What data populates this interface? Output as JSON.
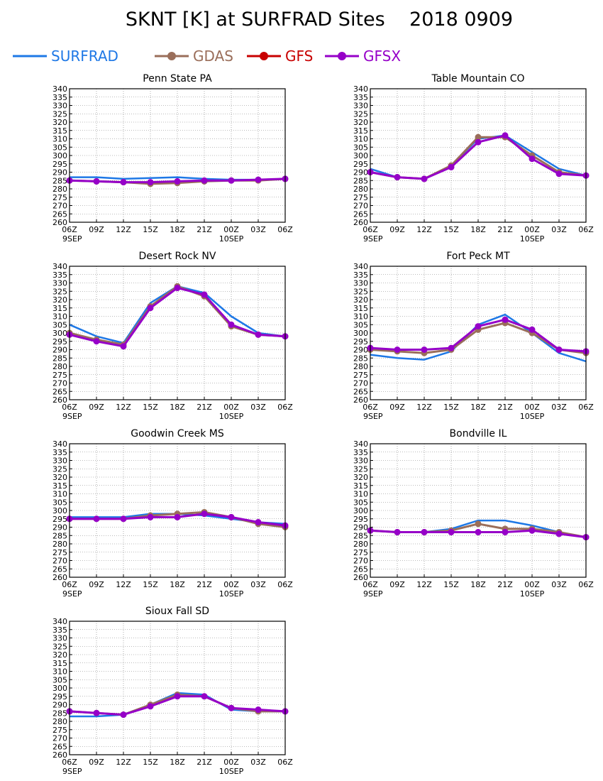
{
  "title": "SKNT [K] at SURFRAD Sites    2018 0909",
  "legend": [
    {
      "name": "SURFRAD",
      "color": "#1e78e6",
      "marker": "none"
    },
    {
      "name": "GDAS",
      "color": "#9a6e5a",
      "marker": "circle"
    },
    {
      "name": "GFS",
      "color": "#c80000",
      "marker": "circle"
    },
    {
      "name": "GFSX",
      "color": "#9600c8",
      "marker": "circle"
    }
  ],
  "x_ticks": [
    "06Z",
    "09Z",
    "12Z",
    "15Z",
    "18Z",
    "21Z",
    "00Z",
    "03Z",
    "06Z"
  ],
  "x_date_labels": [
    {
      "tick_index": 0,
      "text": "9SEP"
    },
    {
      "tick_index": 6,
      "text": "10SEP"
    }
  ],
  "chart_data": [
    {
      "type": "line",
      "title": "Penn State PA",
      "ylim": [
        260,
        340
      ],
      "y_ticks": [
        260,
        265,
        270,
        275,
        280,
        285,
        290,
        295,
        300,
        305,
        310,
        315,
        320,
        325,
        330,
        335,
        340
      ],
      "grid": true,
      "x_hours": [
        0,
        3,
        6,
        9,
        12,
        15,
        18,
        21,
        24
      ],
      "series": [
        {
          "name": "SURFRAD",
          "x": [
            0,
            3,
            6,
            9,
            12,
            15,
            18,
            21,
            24
          ],
          "values": [
            287,
            287,
            286,
            286.5,
            287,
            286,
            285.5,
            285.5,
            286
          ]
        },
        {
          "name": "GDAS",
          "x": [
            0,
            3,
            6,
            9,
            12,
            15,
            18,
            21,
            24
          ],
          "values": [
            285,
            284.5,
            284,
            283,
            283.5,
            284.5,
            285,
            285,
            286
          ]
        },
        {
          "name": "GFSX",
          "x": [
            0,
            3,
            6,
            9,
            12,
            15,
            18,
            21,
            24
          ],
          "values": [
            285,
            284.5,
            284,
            284,
            284.5,
            285,
            285,
            285.5,
            286
          ]
        }
      ]
    },
    {
      "type": "line",
      "title": "Table Mountain CO",
      "ylim": [
        260,
        340
      ],
      "y_ticks": [
        260,
        265,
        270,
        275,
        280,
        285,
        290,
        295,
        300,
        305,
        310,
        315,
        320,
        325,
        330,
        335,
        340
      ],
      "grid": true,
      "x_hours": [
        0,
        3,
        6,
        9,
        12,
        15,
        18,
        21,
        24
      ],
      "series": [
        {
          "name": "SURFRAD",
          "x": [
            0,
            3,
            6,
            9,
            12,
            15,
            18,
            21,
            24
          ],
          "values": [
            292,
            287,
            286,
            294,
            310,
            312,
            302,
            292,
            288
          ]
        },
        {
          "name": "GDAS",
          "x": [
            0,
            3,
            6,
            9,
            12,
            15,
            18,
            21,
            24
          ],
          "values": [
            290,
            287,
            286,
            294,
            311,
            311,
            300,
            290,
            288
          ]
        },
        {
          "name": "GFSX",
          "x": [
            0,
            3,
            6,
            9,
            12,
            15,
            18,
            21,
            24
          ],
          "values": [
            290,
            287,
            286,
            293,
            308,
            312,
            298,
            289,
            288
          ]
        }
      ]
    },
    {
      "type": "line",
      "title": "Desert Rock NV",
      "ylim": [
        260,
        340
      ],
      "y_ticks": [
        260,
        265,
        270,
        275,
        280,
        285,
        290,
        295,
        300,
        305,
        310,
        315,
        320,
        325,
        330,
        335,
        340
      ],
      "grid": true,
      "x_hours": [
        0,
        3,
        6,
        9,
        12,
        15,
        18,
        21,
        24
      ],
      "series": [
        {
          "name": "SURFRAD",
          "x": [
            0,
            3,
            6,
            9,
            12,
            15,
            18,
            21,
            24
          ],
          "values": [
            305,
            298,
            294,
            318,
            328,
            324,
            310,
            300,
            298
          ]
        },
        {
          "name": "GDAS",
          "x": [
            0,
            3,
            6,
            9,
            12,
            15,
            18,
            21,
            24
          ],
          "values": [
            300,
            296,
            293,
            316,
            328,
            322,
            304,
            299,
            298
          ]
        },
        {
          "name": "GFSX",
          "x": [
            0,
            3,
            6,
            9,
            12,
            15,
            18,
            21,
            24
          ],
          "values": [
            299,
            295,
            292,
            315,
            327,
            323,
            305,
            299,
            298
          ]
        }
      ]
    },
    {
      "type": "line",
      "title": "Fort Peck MT",
      "ylim": [
        260,
        340
      ],
      "y_ticks": [
        260,
        265,
        270,
        275,
        280,
        285,
        290,
        295,
        300,
        305,
        310,
        315,
        320,
        325,
        330,
        335,
        340
      ],
      "grid": true,
      "x_hours": [
        0,
        3,
        6,
        9,
        12,
        15,
        18,
        21,
        24
      ],
      "series": [
        {
          "name": "SURFRAD",
          "x": [
            0,
            3,
            6,
            9,
            12,
            15,
            18,
            21,
            24
          ],
          "values": [
            287,
            285,
            284,
            289,
            305,
            311,
            300,
            288,
            283
          ]
        },
        {
          "name": "GDAS",
          "x": [
            0,
            3,
            6,
            9,
            12,
            15,
            18,
            21,
            24
          ],
          "values": [
            290,
            289,
            288,
            290,
            302,
            306,
            300,
            290,
            288
          ]
        },
        {
          "name": "GFSX",
          "x": [
            0,
            3,
            6,
            9,
            12,
            15,
            18,
            21,
            24
          ],
          "values": [
            291,
            290,
            290,
            291,
            304,
            308,
            302,
            290,
            289
          ]
        }
      ]
    },
    {
      "type": "line",
      "title": "Goodwin Creek MS",
      "ylim": [
        260,
        340
      ],
      "y_ticks": [
        260,
        265,
        270,
        275,
        280,
        285,
        290,
        295,
        300,
        305,
        310,
        315,
        320,
        325,
        330,
        335,
        340
      ],
      "grid": true,
      "x_hours": [
        0,
        3,
        6,
        9,
        12,
        15,
        18,
        21,
        24
      ],
      "series": [
        {
          "name": "SURFRAD",
          "x": [
            0,
            3,
            6,
            9,
            12,
            15,
            18,
            21,
            24
          ],
          "values": [
            296,
            296,
            296,
            298,
            298,
            297,
            295,
            293,
            292
          ]
        },
        {
          "name": "GDAS",
          "x": [
            0,
            3,
            6,
            9,
            12,
            15,
            18,
            21,
            24
          ],
          "values": [
            295,
            295,
            295,
            297,
            298,
            299,
            296,
            292,
            290
          ]
        },
        {
          "name": "GFSX",
          "x": [
            0,
            3,
            6,
            9,
            12,
            15,
            18,
            21,
            24
          ],
          "values": [
            295,
            295,
            295,
            296,
            296,
            298,
            296,
            293,
            291
          ]
        }
      ]
    },
    {
      "type": "line",
      "title": "Bondville IL",
      "ylim": [
        260,
        340
      ],
      "y_ticks": [
        260,
        265,
        270,
        275,
        280,
        285,
        290,
        295,
        300,
        305,
        310,
        315,
        320,
        325,
        330,
        335,
        340
      ],
      "grid": true,
      "x_hours": [
        0,
        3,
        6,
        9,
        12,
        15,
        18,
        21,
        24
      ],
      "series": [
        {
          "name": "SURFRAD",
          "x": [
            0,
            3,
            6,
            9,
            12,
            15,
            18,
            21,
            24
          ],
          "values": [
            288,
            287,
            287,
            289,
            294,
            294,
            291,
            287,
            284
          ]
        },
        {
          "name": "GDAS",
          "x": [
            0,
            3,
            6,
            9,
            12,
            15,
            18,
            21,
            24
          ],
          "values": [
            288,
            287,
            287,
            288,
            292,
            289,
            289,
            287,
            284
          ]
        },
        {
          "name": "GFSX",
          "x": [
            0,
            3,
            6,
            9,
            12,
            15,
            18,
            21,
            24
          ],
          "values": [
            288,
            287,
            287,
            287,
            287,
            287,
            288,
            286,
            284
          ]
        }
      ]
    },
    {
      "type": "line",
      "title": "Sioux Fall SD",
      "ylim": [
        260,
        340
      ],
      "y_ticks": [
        260,
        265,
        270,
        275,
        280,
        285,
        290,
        295,
        300,
        305,
        310,
        315,
        320,
        325,
        330,
        335,
        340
      ],
      "grid": true,
      "x_hours": [
        0,
        3,
        6,
        9,
        12,
        15,
        18,
        21,
        24
      ],
      "series": [
        {
          "name": "SURFRAD",
          "x": [
            0,
            3,
            6,
            9,
            12,
            15,
            18,
            21,
            24
          ],
          "values": [
            283,
            283,
            284,
            290,
            297,
            296,
            287,
            286,
            286
          ]
        },
        {
          "name": "GDAS",
          "x": [
            0,
            3,
            6,
            9,
            12,
            15,
            18,
            21,
            24
          ],
          "values": [
            286,
            285,
            284,
            290,
            296,
            295,
            288,
            286,
            286
          ]
        },
        {
          "name": "GFSX",
          "x": [
            0,
            3,
            6,
            9,
            12,
            15,
            18,
            21,
            24
          ],
          "values": [
            286,
            285,
            284,
            289,
            295,
            295,
            288,
            287,
            286
          ]
        }
      ]
    }
  ]
}
